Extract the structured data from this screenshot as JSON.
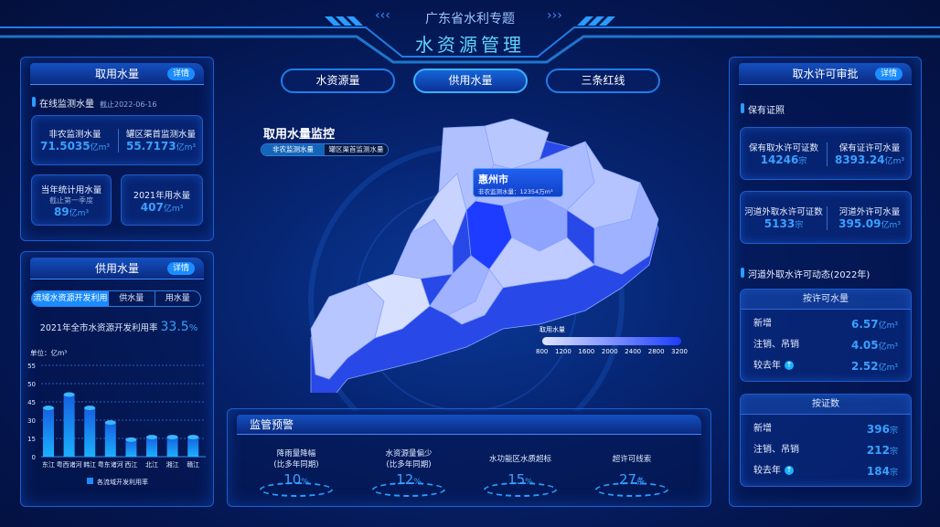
{
  "header": {
    "subtitle": "广东省水利专题",
    "title": "水资源管理",
    "tabs": [
      {
        "label": "水资源量",
        "active": false
      },
      {
        "label": "供用水量",
        "active": true
      },
      {
        "label": "三条红线",
        "active": false
      }
    ]
  },
  "left_top": {
    "title": "取用水量",
    "detail": "详情",
    "section": "在线监测水量",
    "section_date": "截止2022-06-16",
    "card1": [
      {
        "label": "非农监测水量",
        "value": "71.5035",
        "unit": "亿m³"
      },
      {
        "label": "罐区渠首监测水量",
        "value": "55.7173",
        "unit": "亿m³"
      }
    ],
    "card2": {
      "label": "当年统计用水量",
      "sub": "截止第一季度",
      "value": "89",
      "unit": "亿m³"
    },
    "card3": {
      "label": "2021年用水量",
      "value": "407",
      "unit": "亿m³"
    }
  },
  "left_bottom": {
    "title": "供用水量",
    "detail": "详情",
    "tabs": [
      {
        "label": "流域水资源开发利用",
        "active": true
      },
      {
        "label": "供水量"
      },
      {
        "label": "用水量"
      }
    ],
    "rate_label": "2021年全市水资源开发利用率",
    "rate_value": "33.5",
    "rate_unit": "%"
  },
  "chart_data": {
    "type": "bar",
    "ylabel": "单位：亿m³",
    "yticks": [
      "55",
      "50",
      "45",
      "30",
      "15",
      "0"
    ],
    "categories": [
      "东江",
      "粤西诸河",
      "韩江",
      "粤东诸河",
      "西江",
      "北江",
      "湘江",
      "赣江"
    ],
    "series": [
      {
        "name": "各流域开发利用率",
        "values": [
          40,
          47,
          40,
          28,
          14,
          16,
          16,
          16
        ]
      }
    ],
    "color": "#1a8cff"
  },
  "map": {
    "title": "取用水量监控",
    "toggle": [
      {
        "label": "非农监测水量",
        "active": true
      },
      {
        "label": "罐区渠首监测水量"
      }
    ],
    "tooltip": {
      "city": "惠州市",
      "label": "非农监测水量：",
      "value": "12354万m³"
    },
    "legend": {
      "title": "取用水量",
      "ticks": [
        "800",
        "1200",
        "1600",
        "2000",
        "2400",
        "2800",
        "3200"
      ],
      "color_low": "#dfe6ff",
      "color_high": "#1d3cff"
    }
  },
  "warning": {
    "title": "监管预警",
    "items": [
      {
        "label": "降雨量降幅",
        "sub": "(比多年同期)",
        "value": "10",
        "unit": "%"
      },
      {
        "label": "水资源量偏少",
        "sub": "(比多年同期)",
        "value": "12",
        "unit": "%"
      },
      {
        "label": "水功能区水质超标",
        "sub": "",
        "value": "15",
        "unit": "%"
      },
      {
        "label": "超许可线索",
        "sub": "",
        "value": "27",
        "unit": "条"
      }
    ]
  },
  "right": {
    "title": "取水许可审批",
    "detail": "详情",
    "section1": "保有证照",
    "card1": [
      {
        "label": "保有取水许可证数",
        "value": "14246",
        "unit": "宗"
      },
      {
        "label": "保有证许可水量",
        "value": "8393.24",
        "unit": "亿m³"
      }
    ],
    "card2": [
      {
        "label": "河道外取水许可证数",
        "value": "5133",
        "unit": "宗"
      },
      {
        "label": "河道外许可水量",
        "value": "395.09",
        "unit": "亿m³"
      }
    ],
    "section2": "河道外取水许可动态(2022年)",
    "box1": {
      "title": "按许可水量",
      "rows": [
        {
          "label": "新增",
          "value": "6.57",
          "unit": "亿m³"
        },
        {
          "label": "注销、吊销",
          "value": "4.05",
          "unit": "亿m³"
        },
        {
          "label": "较去年",
          "value": "2.52",
          "unit": "亿m³",
          "trend": "up"
        }
      ]
    },
    "box2": {
      "title": "按证数",
      "rows": [
        {
          "label": "新增",
          "value": "396",
          "unit": "宗"
        },
        {
          "label": "注销、吊销",
          "value": "212",
          "unit": "宗"
        },
        {
          "label": "较去年",
          "value": "184",
          "unit": "宗",
          "trend": "up"
        }
      ]
    }
  }
}
